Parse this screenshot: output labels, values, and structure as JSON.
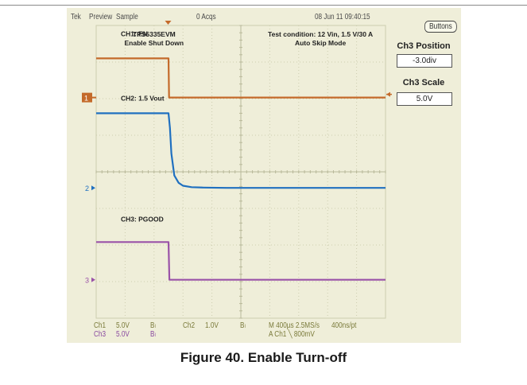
{
  "status_bar": {
    "brand": "Tek",
    "mode": "Preview",
    "acq_mode": "Sample",
    "acq_count": "0 Acqs",
    "datetime": "08 Jun 11 09:40:15"
  },
  "side_menu": {
    "buttons_label": "Buttons",
    "pos_title": "Ch3 Position",
    "pos_value": "-3.0div",
    "scale_title": "Ch3 Scale",
    "scale_value": "5.0V"
  },
  "annotations": {
    "board_line1": "TPS5335EVM",
    "board_line2": "Enable Shut Down",
    "cond_line1": "Test condition: 12 Vin, 1.5 V/30 A",
    "cond_line2": "Auto Skip Mode"
  },
  "bottom_readout": {
    "ch1": "Ch1",
    "ch1_scale": "5.0V",
    "ch1_bw": "Bₗ",
    "ch2": "Ch2",
    "ch2_scale": "1.0V",
    "ch2_bw": "Bₗ",
    "ch3": "Ch3",
    "ch3_scale": "5.0V",
    "ch3_bw": "Bₗ",
    "timebase": "M 400µs 2.5MS/s",
    "record": "400ns/pt",
    "trigger": "A  Ch1  ╲  800mV"
  },
  "figure_caption": "Figure 40. Enable Turn-off",
  "colors": {
    "ch1": "#c46a2a",
    "ch2": "#2070c0",
    "ch3": "#9a52a8",
    "grid": "#cdcdb0",
    "screen": "#efeed9"
  },
  "chart_data": {
    "type": "line",
    "title": "",
    "xlabel": "",
    "ylabel": "",
    "x_divisions": 10,
    "y_divisions": 8,
    "xlim": [
      0,
      10
    ],
    "ylim": [
      -4,
      4
    ],
    "grid": true,
    "series": [
      {
        "name": "CH1: EN",
        "channel_marker": "1",
        "color": "#c46a2a",
        "x": [
          0,
          2.5,
          2.52,
          10
        ],
        "y": [
          3.1,
          3.1,
          2.03,
          2.03
        ]
      },
      {
        "name": "CH2: 1.5 Vout",
        "channel_marker": "2",
        "color": "#2070c0",
        "x": [
          0,
          2.5,
          2.55,
          2.6,
          2.7,
          2.85,
          3.0,
          3.3,
          3.7,
          4.5,
          10
        ],
        "y": [
          1.6,
          1.6,
          1.2,
          0.5,
          -0.1,
          -0.3,
          -0.38,
          -0.42,
          -0.43,
          -0.44,
          -0.44
        ]
      },
      {
        "name": "CH3: PGOOD",
        "channel_marker": "3",
        "color": "#9a52a8",
        "x": [
          0,
          2.5,
          2.53,
          10
        ],
        "y": [
          -1.92,
          -1.92,
          -2.95,
          -2.95
        ]
      }
    ]
  }
}
